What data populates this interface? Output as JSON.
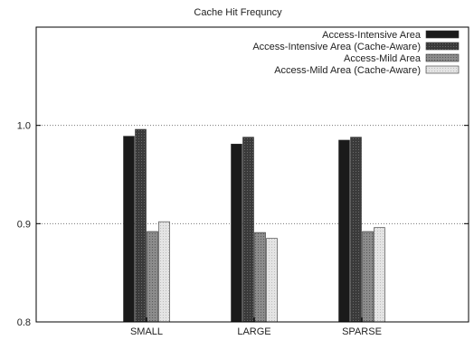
{
  "chart_data": {
    "type": "bar",
    "title": "Cache Hit Frequncy",
    "xlabel": "",
    "ylabel": "",
    "categories": [
      "SMALL",
      "LARGE",
      "SPARSE"
    ],
    "ylim": [
      0.8,
      1.1
    ],
    "yticks": [
      0.8,
      0.9,
      1.0
    ],
    "ytick_labels": [
      "0.8",
      "0.9",
      "1.0"
    ],
    "grid": "horizontal dotted",
    "legend_position": "top-right",
    "series": [
      {
        "name": "Access-Intensive Area",
        "values": [
          0.989,
          0.981,
          0.985
        ],
        "color": "#1a1a1a"
      },
      {
        "name": "Access-Intensive Area (Cache-Aware)",
        "values": [
          0.996,
          0.988,
          0.988
        ],
        "color": "#555555"
      },
      {
        "name": "Access-Mild Area",
        "values": [
          0.892,
          0.891,
          0.892
        ],
        "color": "#8a8a8a"
      },
      {
        "name": "Access-Mild Area (Cache-Aware)",
        "values": [
          0.902,
          0.885,
          0.896
        ],
        "color": "#d8d8d8"
      }
    ]
  }
}
